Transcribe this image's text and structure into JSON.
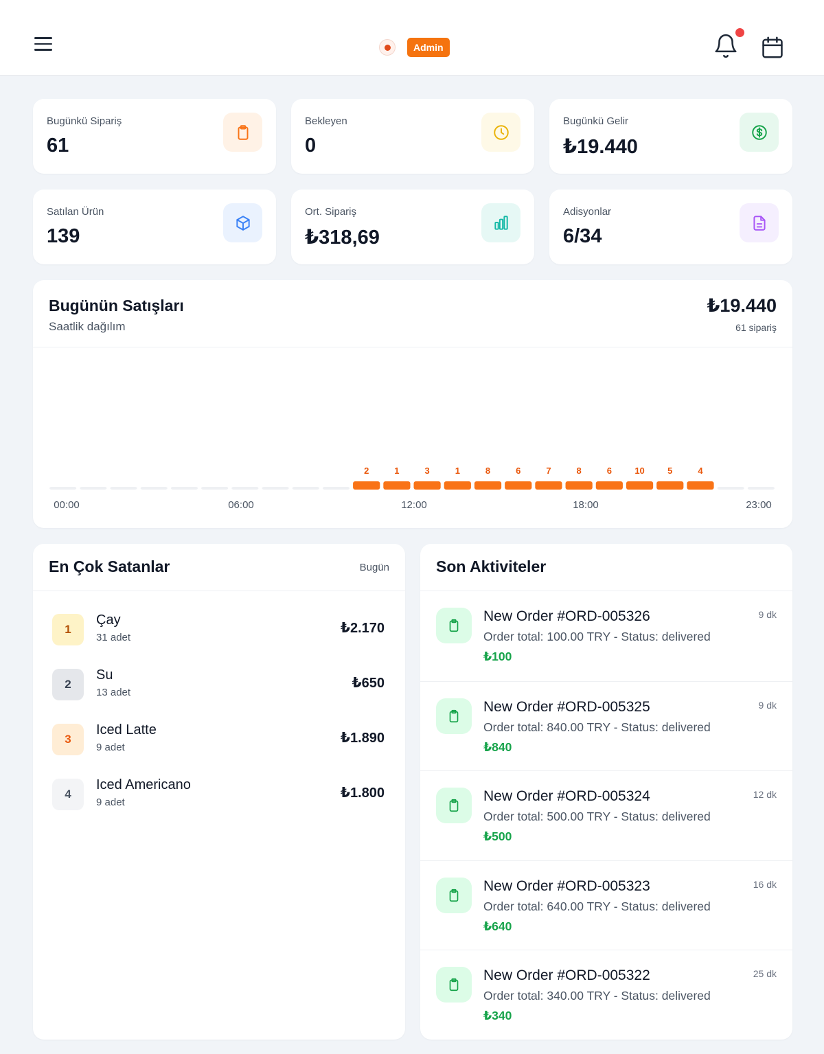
{
  "header": {
    "badge": "Admin",
    "colors": {
      "accent": "#f5730f",
      "notification": "#ef4444"
    }
  },
  "stats": [
    {
      "label": "Bugünkü Sipariş",
      "value": "61",
      "icon": "clipboard-icon",
      "color": "#f97316",
      "bg": "#fff2e6"
    },
    {
      "label": "Bekleyen",
      "value": "0",
      "icon": "clock-icon",
      "color": "#eab308",
      "bg": "#fef9e7"
    },
    {
      "label": "Bugünkü Gelir",
      "value": "₺19.440",
      "icon": "dollar-icon",
      "color": "#16a34a",
      "bg": "#e7f8ee"
    },
    {
      "label": "Satılan Ürün",
      "value": "139",
      "icon": "box-icon",
      "color": "#3b82f6",
      "bg": "#eaf2fe"
    },
    {
      "label": "Ort. Sipariş",
      "value": "₺318,69",
      "icon": "bar-chart-icon",
      "color": "#14b8a6",
      "bg": "#e6f8f5"
    },
    {
      "label": "Adisyonlar",
      "value": "6/34",
      "icon": "document-icon",
      "color": "#a855f7",
      "bg": "#f5effe"
    }
  ],
  "sales": {
    "title": "Bugünün Satışları",
    "subtitle": "Saatlik dağılım",
    "total": "₺19.440",
    "orders": "61 sipariş"
  },
  "chart_data": {
    "type": "bar",
    "categories": [
      "00",
      "01",
      "02",
      "03",
      "04",
      "05",
      "06",
      "07",
      "08",
      "09",
      "10",
      "11",
      "12",
      "13",
      "14",
      "15",
      "16",
      "17",
      "18",
      "19",
      "20",
      "21",
      "22",
      "23"
    ],
    "values": [
      0,
      0,
      0,
      0,
      0,
      0,
      0,
      0,
      0,
      0,
      2,
      1,
      3,
      1,
      8,
      6,
      7,
      8,
      6,
      10,
      5,
      4,
      0,
      0
    ],
    "tick_labels": [
      "00:00",
      "06:00",
      "12:00",
      "18:00",
      "23:00"
    ],
    "bar_color": "#f97316",
    "empty_color": "#eef0f3"
  },
  "top_sellers": {
    "title": "En Çok Satanlar",
    "period": "Bugün",
    "items": [
      {
        "rank": "1",
        "name": "Çay",
        "qty": "31 adet",
        "amount": "₺2.170",
        "rank_bg": "#fef3c7",
        "rank_color": "#b45309"
      },
      {
        "rank": "2",
        "name": "Su",
        "qty": "13 adet",
        "amount": "₺650",
        "rank_bg": "#e5e7eb",
        "rank_color": "#374151"
      },
      {
        "rank": "3",
        "name": "Iced Latte",
        "qty": "9 adet",
        "amount": "₺1.890",
        "rank_bg": "#ffedd5",
        "rank_color": "#ea580c"
      },
      {
        "rank": "4",
        "name": "Iced Americano",
        "qty": "9 adet",
        "amount": "₺1.800",
        "rank_bg": "#f3f4f6",
        "rank_color": "#4b5563"
      }
    ]
  },
  "activities": {
    "title": "Son Aktiviteler",
    "items": [
      {
        "title": "New Order #ORD-005326",
        "desc": "Order total: 100.00 TRY - Status: delivered",
        "amount": "₺100",
        "time": "9 dk"
      },
      {
        "title": "New Order #ORD-005325",
        "desc": "Order total: 840.00 TRY - Status: delivered",
        "amount": "₺840",
        "time": "9 dk"
      },
      {
        "title": "New Order #ORD-005324",
        "desc": "Order total: 500.00 TRY - Status: delivered",
        "amount": "₺500",
        "time": "12 dk"
      },
      {
        "title": "New Order #ORD-005323",
        "desc": "Order total: 640.00 TRY - Status: delivered",
        "amount": "₺640",
        "time": "16 dk"
      },
      {
        "title": "New Order #ORD-005322",
        "desc": "Order total: 340.00 TRY - Status: delivered",
        "amount": "₺340",
        "time": "25 dk"
      }
    ]
  }
}
